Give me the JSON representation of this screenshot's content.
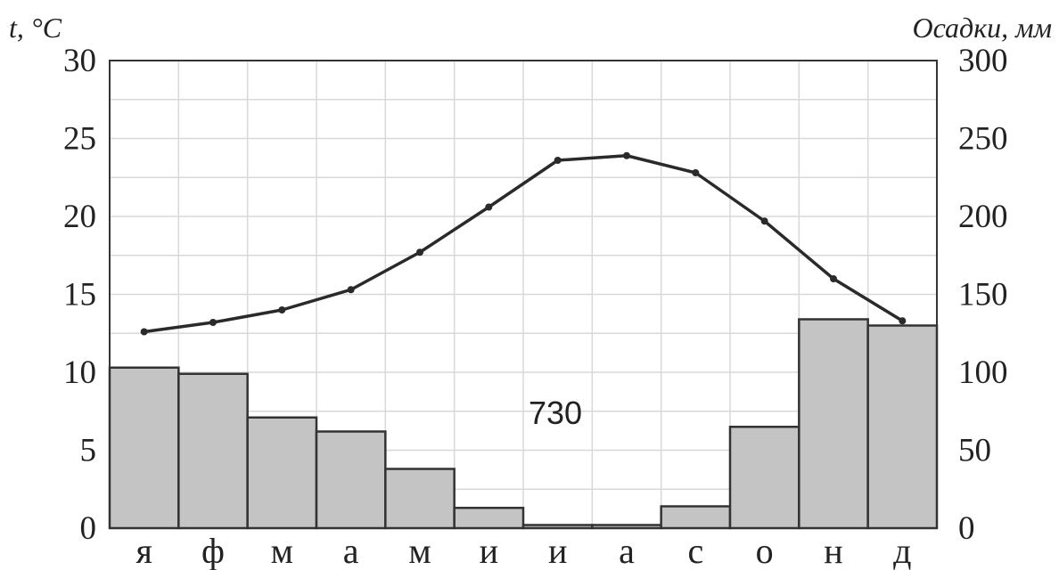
{
  "chart_data": {
    "type": "bar+line",
    "categories": [
      "я",
      "ф",
      "м",
      "а",
      "м",
      "и",
      "и",
      "а",
      "с",
      "о",
      "н",
      "д"
    ],
    "series": [
      {
        "kind": "bar",
        "axis": "right",
        "values": [
          103,
          99,
          71,
          62,
          38,
          13,
          2,
          2,
          14,
          65,
          134,
          130
        ]
      },
      {
        "kind": "line",
        "axis": "left",
        "values": [
          12.6,
          13.2,
          14.0,
          15.3,
          17.7,
          20.6,
          23.6,
          23.9,
          22.8,
          19.7,
          16.0,
          13.3
        ]
      }
    ],
    "left_axis": {
      "label": "t, °C",
      "ylim": [
        0,
        30
      ],
      "ticks": [
        "0",
        "5",
        "10",
        "15",
        "20",
        "25",
        "30"
      ]
    },
    "right_axis": {
      "label": "Осадки, мм",
      "ylim": [
        0,
        300
      ],
      "ticks": [
        "0",
        "50",
        "100",
        "150",
        "200",
        "250",
        "300"
      ]
    },
    "annotation": "730",
    "grid": true,
    "colors": {
      "bar_fill": "#c4c4c4",
      "bar_stroke": "#333333",
      "line": "#2a2a2a"
    }
  }
}
